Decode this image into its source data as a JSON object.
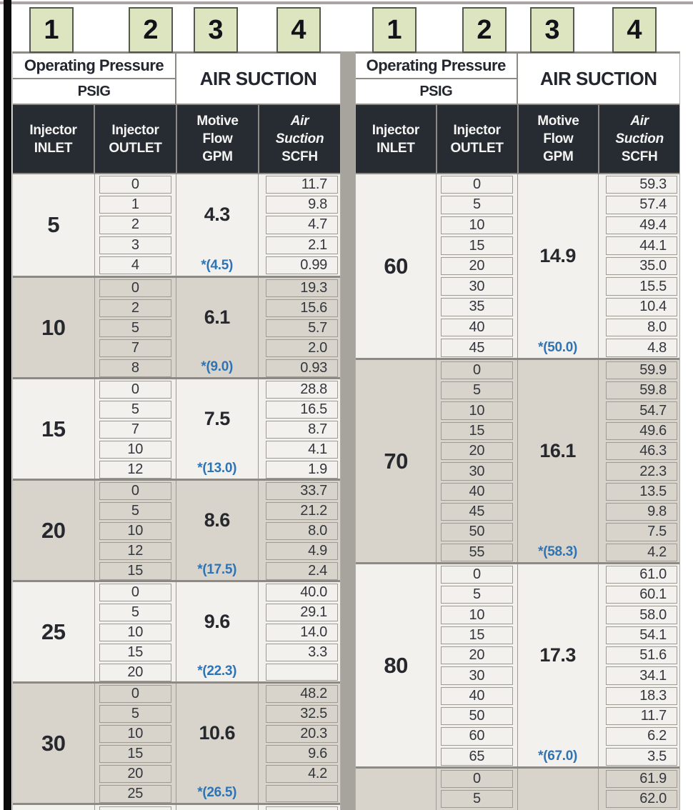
{
  "badges": [
    "1",
    "2",
    "3",
    "4"
  ],
  "header": {
    "operating_pressure": "Operating Pressure",
    "psig": "PSIG",
    "air_suction": "AIR SUCTION",
    "inlet": [
      "Injector",
      "INLET"
    ],
    "outlet": [
      "Injector",
      "OUTLET"
    ],
    "motive": [
      "Motive",
      "Flow",
      "GPM"
    ],
    "suction": [
      "Air",
      "Suction",
      "SCFH"
    ]
  },
  "colors": {
    "band_light": "#f3f1ee",
    "band_dark": "#d8d4cb",
    "header_dark": "#272b32",
    "accent_blue": "#2e74b5",
    "badge_green": "#dde4c0"
  },
  "tables": [
    {
      "id": "left",
      "groups": [
        {
          "inlet": "5",
          "flow": "4.3",
          "note": "*(4.5)",
          "rows": [
            {
              "outlet": "0",
              "scfh": "11.7"
            },
            {
              "outlet": "1",
              "scfh": "9.8"
            },
            {
              "outlet": "2",
              "scfh": "4.7"
            },
            {
              "outlet": "3",
              "scfh": "2.1"
            },
            {
              "outlet": "4",
              "scfh": "0.99"
            }
          ]
        },
        {
          "inlet": "10",
          "flow": "6.1",
          "note": "*(9.0)",
          "rows": [
            {
              "outlet": "0",
              "scfh": "19.3"
            },
            {
              "outlet": "2",
              "scfh": "15.6"
            },
            {
              "outlet": "5",
              "scfh": "5.7"
            },
            {
              "outlet": "7",
              "scfh": "2.0"
            },
            {
              "outlet": "8",
              "scfh": "0.93"
            }
          ]
        },
        {
          "inlet": "15",
          "flow": "7.5",
          "note": "*(13.0)",
          "rows": [
            {
              "outlet": "0",
              "scfh": "28.8"
            },
            {
              "outlet": "5",
              "scfh": "16.5"
            },
            {
              "outlet": "7",
              "scfh": "8.7"
            },
            {
              "outlet": "10",
              "scfh": "4.1"
            },
            {
              "outlet": "12",
              "scfh": "1.9"
            }
          ]
        },
        {
          "inlet": "20",
          "flow": "8.6",
          "note": "*(17.5)",
          "rows": [
            {
              "outlet": "0",
              "scfh": "33.7"
            },
            {
              "outlet": "5",
              "scfh": "21.2"
            },
            {
              "outlet": "10",
              "scfh": "8.0"
            },
            {
              "outlet": "12",
              "scfh": "4.9"
            },
            {
              "outlet": "15",
              "scfh": "2.4"
            }
          ]
        },
        {
          "inlet": "25",
          "flow": "9.6",
          "note": "*(22.3)",
          "rows": [
            {
              "outlet": "0",
              "scfh": "40.0"
            },
            {
              "outlet": "5",
              "scfh": "29.1"
            },
            {
              "outlet": "10",
              "scfh": "14.0"
            },
            {
              "outlet": "15",
              "scfh": "3.3"
            },
            {
              "outlet": "20",
              "scfh": ""
            }
          ]
        },
        {
          "inlet": "30",
          "flow": "10.6",
          "note": "*(26.5)",
          "rows": [
            {
              "outlet": "0",
              "scfh": "48.2"
            },
            {
              "outlet": "5",
              "scfh": "32.5"
            },
            {
              "outlet": "10",
              "scfh": "20.3"
            },
            {
              "outlet": "15",
              "scfh": "9.6"
            },
            {
              "outlet": "20",
              "scfh": "4.2"
            },
            {
              "outlet": "25",
              "scfh": ""
            }
          ]
        }
      ]
    },
    {
      "id": "right",
      "groups": [
        {
          "inlet": "60",
          "flow": "14.9",
          "note": "*(50.0)",
          "rows": [
            {
              "outlet": "0",
              "scfh": "59.3"
            },
            {
              "outlet": "5",
              "scfh": "57.4"
            },
            {
              "outlet": "10",
              "scfh": "49.4"
            },
            {
              "outlet": "15",
              "scfh": "44.1"
            },
            {
              "outlet": "20",
              "scfh": "35.0"
            },
            {
              "outlet": "30",
              "scfh": "15.5"
            },
            {
              "outlet": "35",
              "scfh": "10.4"
            },
            {
              "outlet": "40",
              "scfh": "8.0"
            },
            {
              "outlet": "45",
              "scfh": "4.8"
            }
          ]
        },
        {
          "inlet": "70",
          "flow": "16.1",
          "note": "*(58.3)",
          "rows": [
            {
              "outlet": "0",
              "scfh": "59.9"
            },
            {
              "outlet": "5",
              "scfh": "59.8"
            },
            {
              "outlet": "10",
              "scfh": "54.7"
            },
            {
              "outlet": "15",
              "scfh": "49.6"
            },
            {
              "outlet": "20",
              "scfh": "46.3"
            },
            {
              "outlet": "30",
              "scfh": "22.3"
            },
            {
              "outlet": "40",
              "scfh": "13.5"
            },
            {
              "outlet": "45",
              "scfh": "9.8"
            },
            {
              "outlet": "50",
              "scfh": "7.5"
            },
            {
              "outlet": "55",
              "scfh": "4.2"
            }
          ]
        },
        {
          "inlet": "80",
          "flow": "17.3",
          "note": "*(67.0)",
          "rows": [
            {
              "outlet": "0",
              "scfh": "61.0"
            },
            {
              "outlet": "5",
              "scfh": "60.1"
            },
            {
              "outlet": "10",
              "scfh": "58.0"
            },
            {
              "outlet": "15",
              "scfh": "54.1"
            },
            {
              "outlet": "20",
              "scfh": "51.6"
            },
            {
              "outlet": "30",
              "scfh": "34.1"
            },
            {
              "outlet": "40",
              "scfh": "18.3"
            },
            {
              "outlet": "50",
              "scfh": "11.7"
            },
            {
              "outlet": "60",
              "scfh": "6.2"
            },
            {
              "outlet": "65",
              "scfh": "3.5"
            }
          ]
        },
        {
          "inlet": "",
          "flow": "",
          "note": "",
          "partial": true,
          "rows": [
            {
              "outlet": "0",
              "scfh": "61.9"
            },
            {
              "outlet": "5",
              "scfh": "62.0"
            }
          ]
        }
      ]
    }
  ]
}
